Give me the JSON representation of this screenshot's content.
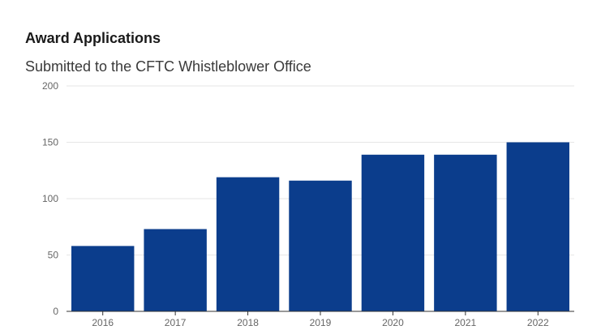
{
  "chart_data": {
    "type": "bar",
    "title": "Award Applications",
    "subtitle": "Submitted to the CFTC Whistleblower Office",
    "xlabel": "",
    "ylabel": "",
    "categories": [
      "2016",
      "2017",
      "2018",
      "2019",
      "2020",
      "2021",
      "2022"
    ],
    "values": [
      58,
      73,
      119,
      116,
      139,
      139,
      150
    ],
    "ylim": [
      0,
      200
    ],
    "yticks": [
      0,
      50,
      100,
      150,
      200
    ],
    "grid": true,
    "legend": "none",
    "bar_color": "#0b3d8c",
    "grid_color": "#e6e6e6",
    "axis_color": "#333333"
  }
}
